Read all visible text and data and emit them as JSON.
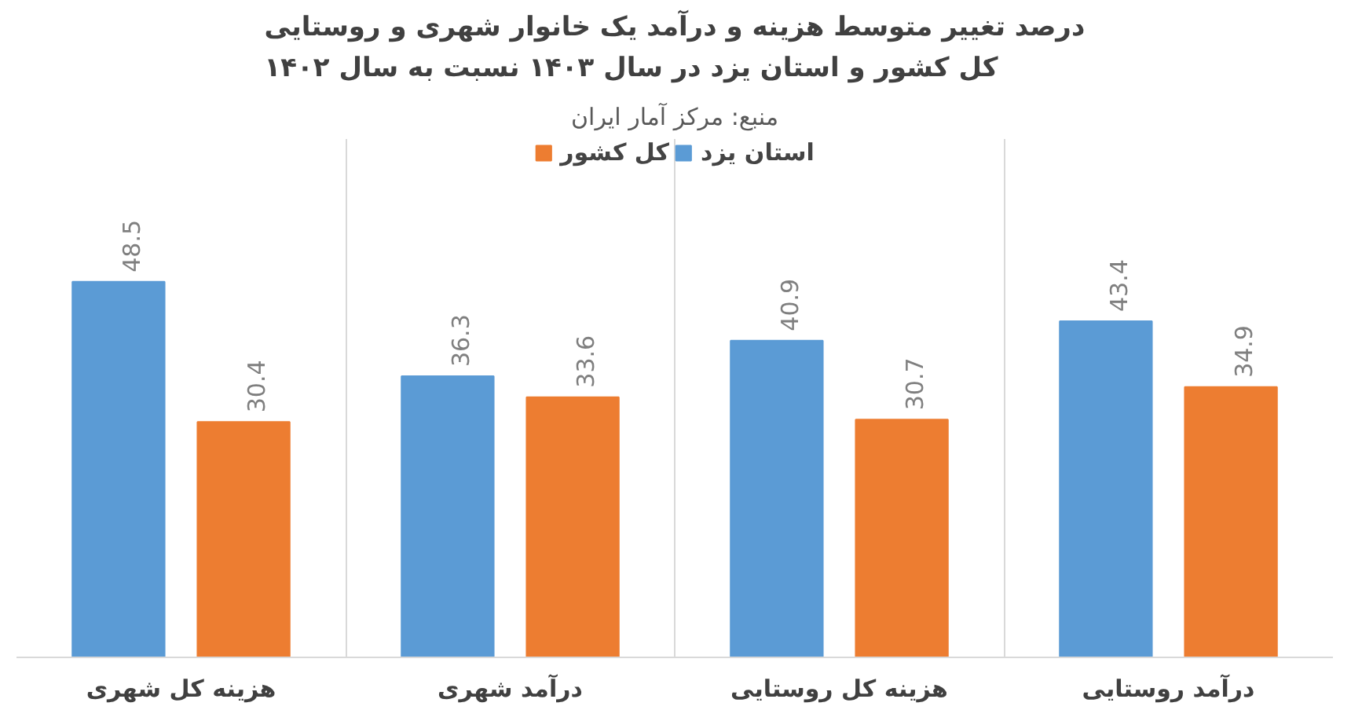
{
  "chart_data": {
    "type": "bar",
    "title": "درصد تغییر متوسط هزینه و درآمد یک خانوار شهری و روستایی\nکل کشور و استان یزد در سال ۱۴۰۳ نسبت به سال ۱۴۰۲",
    "subtitle": "منبع: مرکز آمار ایران",
    "categories": [
      "هزینه کل شهری",
      "درآمد شهری",
      "هزینه کل روستایی",
      "درآمد روستایی"
    ],
    "series": [
      {
        "name": "استان یزد",
        "color": "#5b9bd5",
        "values": [
          48.5,
          36.3,
          40.9,
          43.4
        ]
      },
      {
        "name": "کل کشور",
        "color": "#ed7d31",
        "values": [
          30.4,
          33.6,
          30.7,
          34.9
        ]
      }
    ],
    "data_labels": true,
    "legend": "top",
    "grid": "x"
  }
}
